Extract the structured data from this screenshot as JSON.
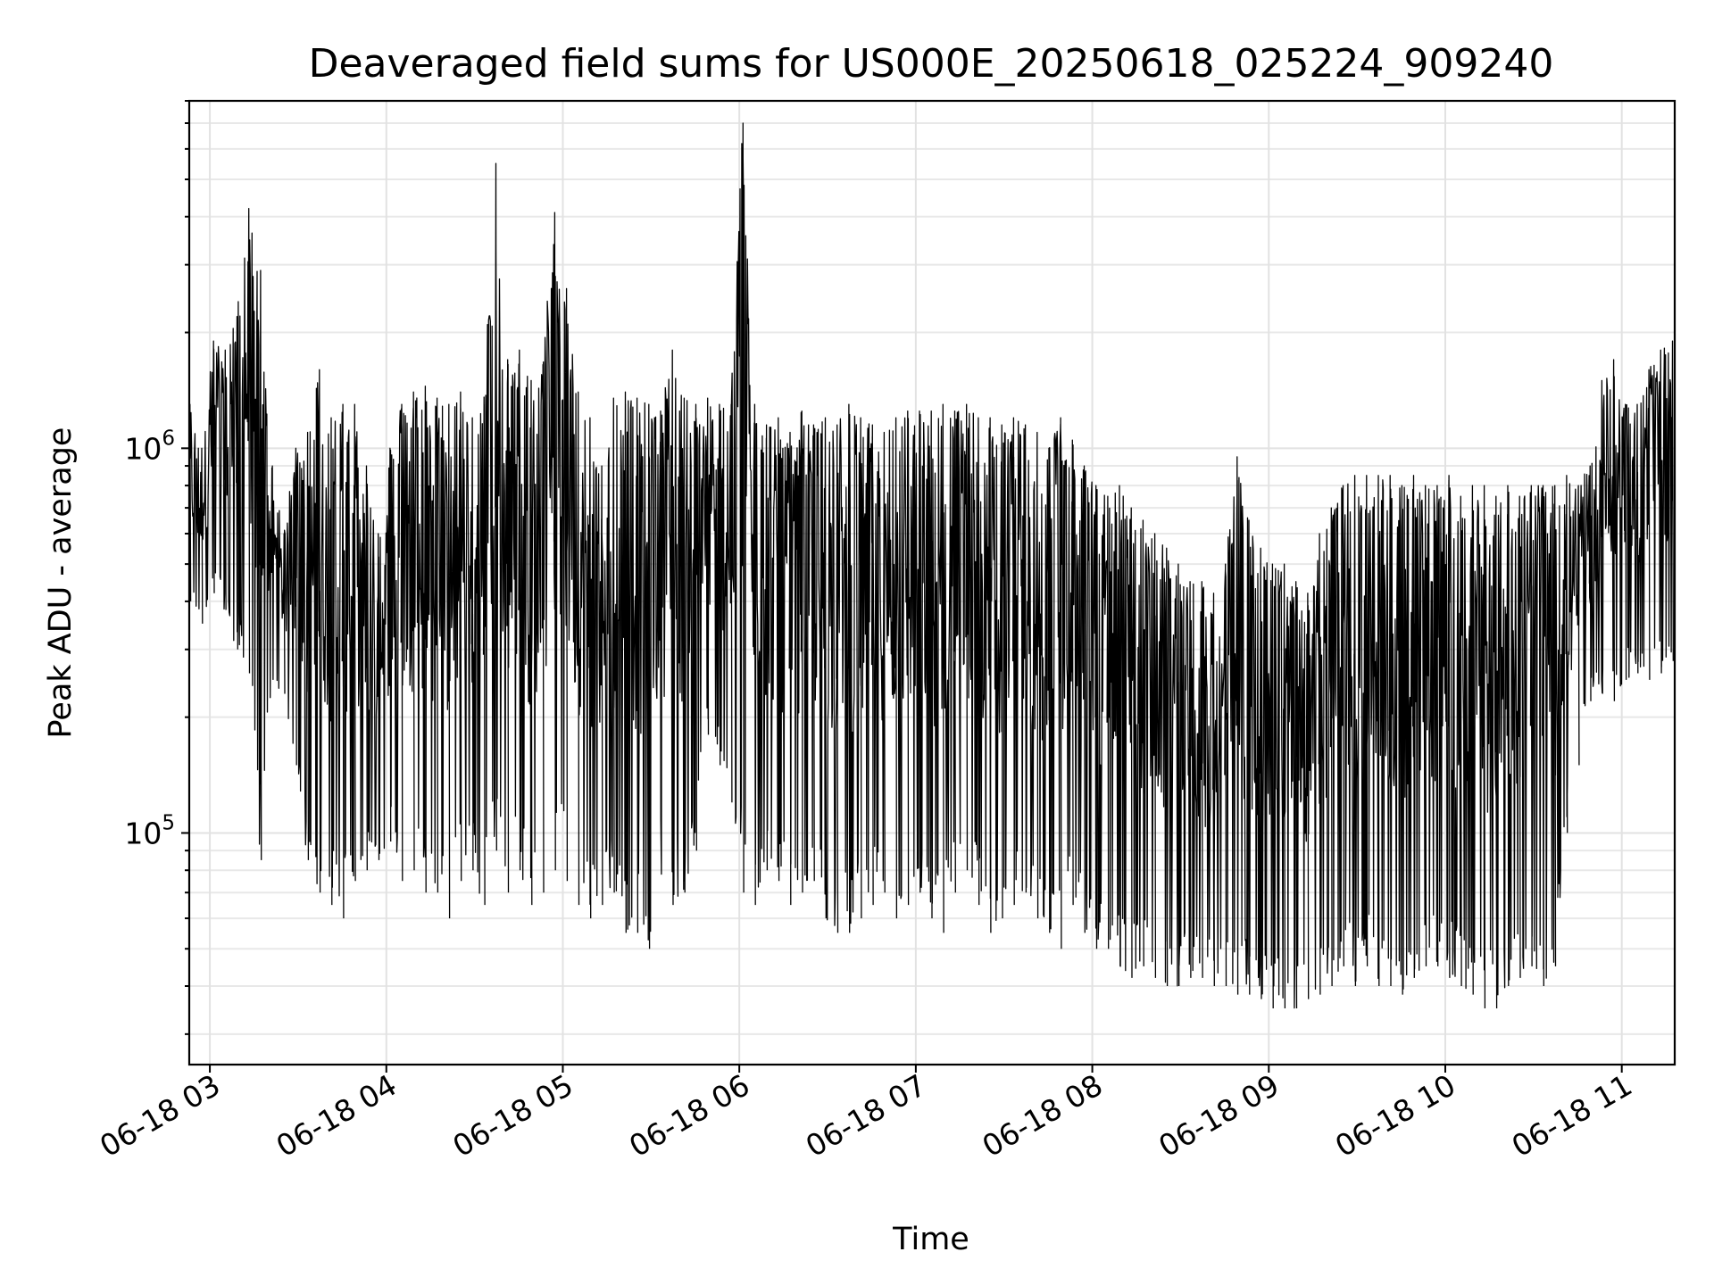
{
  "chart_data": {
    "type": "line",
    "title": "Deaveraged field sums for US000E_20250618_025224_909240",
    "xlabel": "Time",
    "ylabel": "Peak ADU - average",
    "y_scale": "log",
    "grid": true,
    "line_color": "#000000",
    "x_range": [
      "06-18 02:53",
      "06-18 11:18"
    ],
    "y_range": [
      25000,
      8000000
    ],
    "x_ticks": [
      "06-18 03",
      "06-18 04",
      "06-18 05",
      "06-18 06",
      "06-18 07",
      "06-18 08",
      "06-18 09",
      "06-18 10",
      "06-18 11"
    ],
    "y_ticks": [
      {
        "value": 100000,
        "base": "10",
        "exp": "5"
      },
      {
        "value": 1000000,
        "base": "10",
        "exp": "6"
      }
    ],
    "series": [
      {
        "x": [
          "02:53",
          "02:57",
          "03:01",
          "03:05",
          "03:09",
          "03:13",
          "03:17",
          "03:21",
          "03:25",
          "03:29",
          "03:33",
          "03:37",
          "03:41",
          "03:45",
          "03:49",
          "03:53",
          "03:57",
          "04:01",
          "04:05",
          "04:09",
          "04:13",
          "04:17",
          "04:21",
          "04:25",
          "04:29",
          "04:33",
          "04:37",
          "04:41",
          "04:45",
          "04:49",
          "04:53",
          "04:57",
          "05:01",
          "05:05",
          "05:09",
          "05:13",
          "05:17",
          "05:21",
          "05:25",
          "05:29",
          "05:33",
          "05:37",
          "05:41",
          "05:45",
          "05:49",
          "05:53",
          "05:57",
          "06:01",
          "06:05",
          "06:09",
          "06:13",
          "06:17",
          "06:21",
          "06:25",
          "06:29",
          "06:33",
          "06:37",
          "06:41",
          "06:45",
          "06:49",
          "06:53",
          "06:57",
          "07:01",
          "07:05",
          "07:09",
          "07:13",
          "07:17",
          "07:21",
          "07:25",
          "07:29",
          "07:33",
          "07:37",
          "07:41",
          "07:45",
          "07:49",
          "07:53",
          "07:57",
          "08:01",
          "08:05",
          "08:09",
          "08:13",
          "08:17",
          "08:21",
          "08:25",
          "08:29",
          "08:33",
          "08:37",
          "08:41",
          "08:45",
          "08:49",
          "08:53",
          "08:57",
          "09:01",
          "09:05",
          "09:09",
          "09:13",
          "09:17",
          "09:21",
          "09:25",
          "09:29",
          "09:33",
          "09:37",
          "09:41",
          "09:45",
          "09:49",
          "09:53",
          "09:57",
          "10:01",
          "10:05",
          "10:09",
          "10:13",
          "10:17",
          "10:21",
          "10:25",
          "10:29",
          "10:33",
          "10:37",
          "10:41",
          "10:45",
          "10:49",
          "10:53",
          "10:57",
          "11:01",
          "11:05",
          "11:09",
          "11:13",
          "11:17"
        ],
        "low": [
          400000,
          350000,
          420000,
          380000,
          300000,
          260000,
          85000,
          250000,
          230000,
          150000,
          85000,
          70000,
          65000,
          60000,
          75000,
          80000,
          85000,
          95000,
          75000,
          80000,
          70000,
          70000,
          60000,
          75000,
          80000,
          65000,
          90000,
          70000,
          80000,
          65000,
          70000,
          80000,
          75000,
          65000,
          60000,
          65000,
          70000,
          55000,
          55000,
          50000,
          80000,
          65000,
          70000,
          90000,
          180000,
          150000,
          120000,
          70000,
          65000,
          80000,
          75000,
          65000,
          70000,
          75000,
          60000,
          55000,
          55000,
          60000,
          65000,
          70000,
          60000,
          65000,
          70000,
          60000,
          55000,
          70000,
          80000,
          65000,
          55000,
          60000,
          65000,
          70000,
          60000,
          55000,
          50000,
          65000,
          55000,
          50000,
          50000,
          45000,
          42000,
          45000,
          42000,
          40000,
          40000,
          42000,
          42000,
          40000,
          40000,
          38000,
          38000,
          37000,
          35000,
          35000,
          35000,
          37000,
          38000,
          40000,
          45000,
          40000,
          45000,
          40000,
          40000,
          38000,
          42000,
          45000,
          45000,
          42000,
          40000,
          38000,
          35000,
          35000,
          40000,
          42000,
          45000,
          40000,
          45000,
          100000,
          150000,
          220000,
          230000,
          220000,
          250000,
          260000,
          250000,
          260000,
          280000
        ],
        "high": [
          1300000,
          1000000,
          1900000,
          1800000,
          2200000,
          4200000,
          2900000,
          900000,
          600000,
          1000000,
          1100000,
          1600000,
          1200000,
          1300000,
          1300000,
          900000,
          600000,
          1000000,
          1300000,
          1400000,
          1450000,
          1350000,
          1300000,
          1400000,
          1200000,
          1300000,
          5500000,
          1700000,
          1800000,
          1500000,
          1650000,
          4100000,
          2600000,
          1400000,
          1200000,
          900000,
          1350000,
          1400000,
          1350000,
          1300000,
          1250000,
          1800000,
          1350000,
          1300000,
          1350000,
          1300000,
          1300000,
          7000000,
          1300000,
          1150000,
          1200000,
          1100000,
          1250000,
          1150000,
          1200000,
          1150000,
          1300000,
          1200000,
          1150000,
          1100000,
          1200000,
          1250000,
          1250000,
          1250000,
          1300000,
          1250000,
          1300000,
          1200000,
          1200000,
          1150000,
          1200000,
          1150000,
          1100000,
          1000000,
          1200000,
          1050000,
          900000,
          800000,
          750000,
          800000,
          700000,
          650000,
          600000,
          550000,
          500000,
          450000,
          450000,
          420000,
          500000,
          950000,
          650000,
          550000,
          500000,
          500000,
          450000,
          420000,
          600000,
          700000,
          800000,
          850000,
          850000,
          850000,
          850000,
          800000,
          850000,
          800000,
          800000,
          850000,
          750000,
          800000,
          800000,
          750000,
          800000,
          750000,
          800000,
          800000,
          800000,
          850000,
          800000,
          900000,
          1500000,
          1700000,
          1300000,
          1300000,
          1600000,
          1800000,
          1900000
        ]
      }
    ]
  }
}
